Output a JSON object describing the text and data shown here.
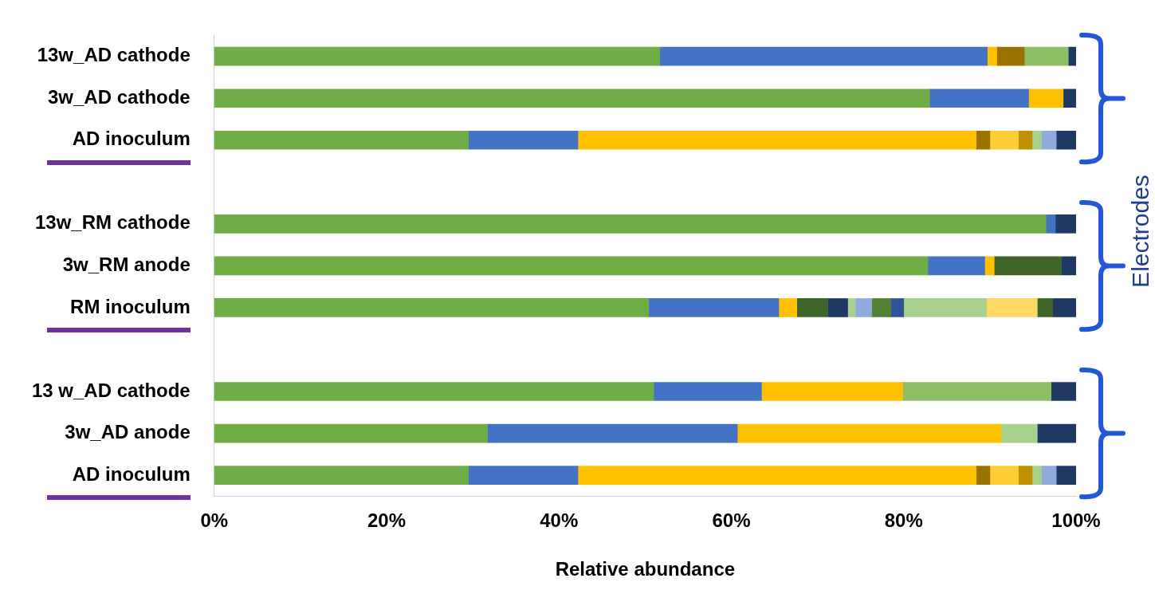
{
  "chart_data": {
    "type": "bar",
    "orientation": "horizontal",
    "stacked": true,
    "xlabel": "Relative abundance",
    "annotations": [
      "Electrodes"
    ],
    "categories": [
      "13w_AD cathode",
      "3w_AD cathode",
      "AD inoculum",
      null,
      "13w_RM cathode",
      "3w_RM anode",
      "RM inoculum",
      null,
      "13 w_AD cathode",
      "3w_AD anode",
      "AD inoculum"
    ],
    "series": [
      {
        "color": "#70ad47",
        "values": [
          51.7,
          83.0,
          29.5,
          null,
          96.5,
          82.8,
          50.4,
          null,
          51.0,
          31.7,
          29.5
        ]
      },
      {
        "color": "#4472c4",
        "values": [
          38.0,
          11.5,
          12.7,
          null,
          1.1,
          6.6,
          15.1,
          null,
          12.5,
          29.0,
          12.7
        ]
      },
      {
        "color": "#ffc000",
        "values": [
          1.1,
          4.0,
          46.2,
          null,
          null,
          1.1,
          2.1,
          null,
          16.4,
          30.6,
          46.2
        ]
      },
      {
        "color": "#997300",
        "values": [
          3.2,
          null,
          1.6,
          null,
          null,
          null,
          null,
          null,
          null,
          null,
          1.6
        ]
      },
      {
        "color": "#ffcd33",
        "values": [
          null,
          null,
          3.3,
          null,
          null,
          null,
          null,
          null,
          null,
          null,
          3.3
        ]
      },
      {
        "color": "#bf9000",
        "values": [
          null,
          null,
          1.6,
          null,
          null,
          null,
          null,
          null,
          null,
          null,
          1.6
        ]
      },
      {
        "color": "#3f6428",
        "values": [
          null,
          null,
          null,
          null,
          null,
          null,
          3.6,
          null,
          null,
          null,
          null
        ]
      },
      {
        "color": "#203864",
        "values": [
          null,
          null,
          null,
          null,
          null,
          null,
          2.3,
          null,
          null,
          null,
          null
        ]
      },
      {
        "color": "#a9d18e",
        "values": [
          null,
          null,
          1.1,
          null,
          null,
          null,
          0.9,
          null,
          null,
          null,
          1.1
        ]
      },
      {
        "color": "#8faadc",
        "values": [
          null,
          null,
          1.7,
          null,
          null,
          null,
          1.9,
          null,
          null,
          null,
          1.7
        ]
      },
      {
        "color": "#548235",
        "values": [
          null,
          null,
          null,
          null,
          null,
          null,
          2.2,
          null,
          null,
          null,
          null
        ]
      },
      {
        "color": "#2f5597",
        "values": [
          null,
          null,
          null,
          null,
          null,
          null,
          1.5,
          null,
          null,
          null,
          null
        ]
      },
      {
        "color": "#8cbf64",
        "values": [
          5.1,
          null,
          null,
          null,
          null,
          null,
          null,
          null,
          17.2,
          null,
          null
        ]
      },
      {
        "color": "#a9d18e",
        "values": [
          null,
          null,
          null,
          null,
          null,
          null,
          9.6,
          null,
          null,
          4.2,
          null
        ]
      },
      {
        "color": "#ffd966",
        "values": [
          null,
          null,
          null,
          null,
          null,
          null,
          5.9,
          null,
          null,
          null,
          null
        ]
      },
      {
        "color": "#3f6428",
        "values": [
          null,
          null,
          null,
          null,
          null,
          7.8,
          1.8,
          null,
          null,
          null,
          null
        ]
      },
      {
        "color": "#203864",
        "values": [
          0.9,
          1.5,
          2.3,
          null,
          2.4,
          1.7,
          2.7,
          null,
          2.9,
          4.5,
          2.3
        ]
      }
    ],
    "xlim": [
      0,
      100
    ],
    "xticks": [
      {
        "value": 0,
        "label": "0%"
      },
      {
        "value": 20,
        "label": "20%"
      },
      {
        "value": 40,
        "label": "40%"
      },
      {
        "value": 60,
        "label": "60%"
      },
      {
        "value": 80,
        "label": "80%"
      },
      {
        "value": 100,
        "label": "100%"
      }
    ],
    "grid": false,
    "legend": false
  }
}
